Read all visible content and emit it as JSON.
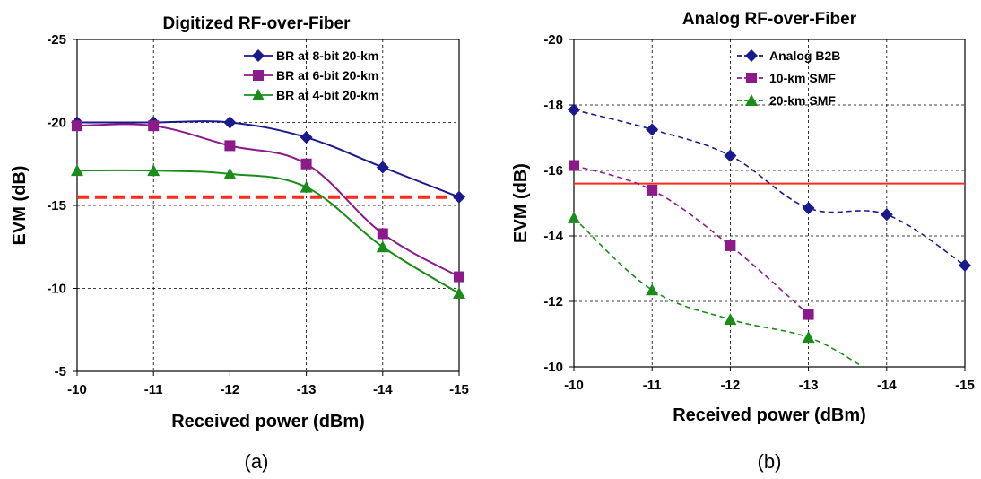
{
  "chart_data": [
    {
      "type": "line",
      "title": "Digitized RF-over-Fiber",
      "xlabel": "Received power (dBm)",
      "ylabel": "EVM (dB)",
      "caption": "(a)",
      "x": [
        -10,
        -11,
        -12,
        -13,
        -14,
        -15
      ],
      "x_tick_labels": [
        "-10",
        "-11",
        "-12",
        "-13",
        "-14",
        "-15"
      ],
      "y_ticks": [
        -25,
        -20,
        -15,
        -10,
        -5
      ],
      "y_tick_labels": [
        "-25",
        "-20",
        "-15",
        "-10",
        "-5"
      ],
      "ylim": [
        -25,
        -5
      ],
      "y_axis_reversed": true,
      "xlim": [
        -10,
        -15
      ],
      "grid": true,
      "legend_position": "top-right",
      "line_style": "solid-smooth",
      "threshold": -15.5,
      "threshold_color": "#ff2a1a",
      "series": [
        {
          "name": "BR at 8-bit 20-km",
          "marker": "diamond",
          "color": "#1a1a8c",
          "values": [
            -20.0,
            -20.0,
            -20.0,
            -19.1,
            -17.3,
            -15.5
          ]
        },
        {
          "name": "BR at 6-bit 20-km",
          "marker": "square",
          "color": "#8b1a8b",
          "values": [
            -19.8,
            -19.8,
            -18.6,
            -17.5,
            -13.3,
            -10.7
          ]
        },
        {
          "name": "BR at 4-bit 20-km",
          "marker": "triangle",
          "color": "#1a8c1a",
          "values": [
            -17.1,
            -17.1,
            -16.9,
            -16.1,
            -12.5,
            -9.7
          ]
        }
      ]
    },
    {
      "type": "line",
      "title": "Analog RF-over-Fiber",
      "xlabel": "Received power (dBm)",
      "ylabel": "EVM (dB)",
      "caption": "(b)",
      "x": [
        -10,
        -11,
        -12,
        -13,
        -14,
        -15
      ],
      "x_tick_labels": [
        "-10",
        "-11",
        "-12",
        "-13",
        "-14",
        "-15"
      ],
      "y_ticks": [
        -20,
        -18,
        -16,
        -14,
        -12,
        -10
      ],
      "y_tick_labels": [
        "-20",
        "-18",
        "-16",
        "-14",
        "-12",
        "-10"
      ],
      "ylim": [
        -20,
        -10
      ],
      "y_axis_reversed": true,
      "xlim": [
        -10,
        -15
      ],
      "grid": true,
      "legend_position": "top-right",
      "line_style": "dashed-smooth",
      "threshold": -15.6,
      "threshold_color": "#ff2a1a",
      "series": [
        {
          "name": "Analog B2B",
          "marker": "diamond",
          "color": "#1a1a8c",
          "values": [
            -17.85,
            -17.25,
            -16.45,
            -14.85,
            -14.65,
            -13.1
          ]
        },
        {
          "name": "10-km SMF",
          "marker": "square",
          "color": "#8b1a8b",
          "values": [
            -16.15,
            -15.4,
            -13.7,
            -11.6,
            null,
            null
          ]
        },
        {
          "name": "20-km SMF",
          "marker": "triangle",
          "color": "#1a8c1a",
          "values": [
            -14.55,
            -12.35,
            -11.45,
            -10.9,
            null,
            null
          ],
          "tail_end": {
            "x": -13.7,
            "y": -10.0
          }
        }
      ]
    }
  ]
}
